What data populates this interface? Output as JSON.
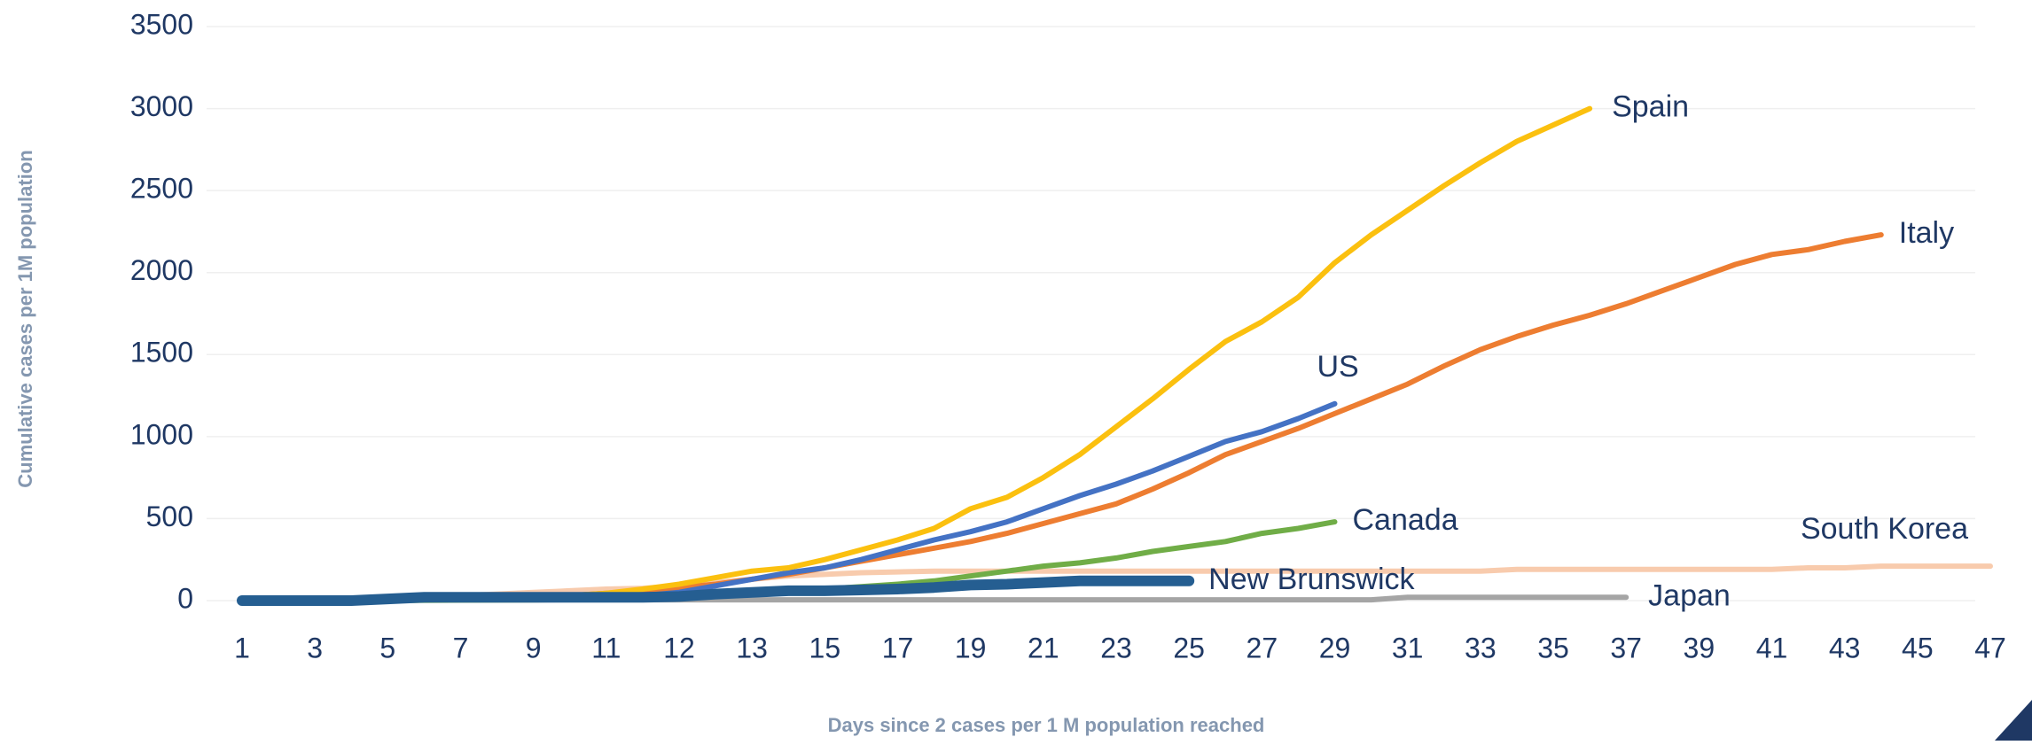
{
  "chart_data": {
    "type": "line",
    "y_label": "Cumulative cases per 1M population",
    "x_label": "Days since 2 cases per 1 M population reached",
    "categories": [
      1,
      null,
      3,
      null,
      5,
      null,
      7,
      null,
      9,
      null,
      11,
      null,
      12,
      null,
      13,
      null,
      15,
      null,
      17,
      null,
      19,
      null,
      21,
      null,
      23,
      null,
      25,
      null,
      27,
      null,
      29,
      null,
      31,
      null,
      33,
      null,
      35,
      null,
      37,
      null,
      39,
      null,
      41,
      null,
      43,
      null,
      45,
      null,
      47
    ],
    "ylim": [
      0,
      3500
    ],
    "yticks": [
      0,
      500,
      1000,
      1500,
      2000,
      2500,
      3000,
      3500
    ],
    "grid": true,
    "series": [
      {
        "name": "South Korea",
        "color": "#f8cbad",
        "values": [
          0,
          0,
          0,
          0,
          10,
          20,
          30,
          40,
          50,
          60,
          70,
          75,
          90,
          110,
          130,
          150,
          160,
          170,
          175,
          180,
          180,
          180,
          180,
          180,
          180,
          180,
          180,
          180,
          180,
          180,
          180,
          180,
          180,
          180,
          180,
          190,
          190,
          190,
          190,
          190,
          190,
          190,
          190,
          200,
          200,
          210,
          210,
          210,
          210
        ]
      },
      {
        "name": "Japan",
        "color": "#a5a5a5",
        "values": [
          0,
          0,
          0,
          0,
          2,
          3,
          3,
          4,
          4,
          5,
          5,
          5,
          5,
          5,
          5,
          5,
          5,
          5,
          5,
          5,
          5,
          5,
          5,
          5,
          5,
          5,
          5,
          5,
          5,
          5,
          5,
          5,
          20,
          20,
          20,
          20,
          20,
          20,
          20,
          null,
          null,
          null,
          null,
          null,
          null,
          null,
          null,
          null,
          null
        ]
      },
      {
        "name": "Canada",
        "color": "#70ad47",
        "values": [
          0,
          0,
          0,
          0,
          0,
          2,
          3,
          4,
          5,
          6,
          8,
          12,
          20,
          30,
          40,
          55,
          70,
          85,
          100,
          120,
          150,
          180,
          210,
          230,
          260,
          300,
          330,
          360,
          410,
          440,
          480,
          null,
          null,
          null,
          null,
          null,
          null,
          null,
          null,
          null,
          null,
          null,
          null,
          null,
          null,
          null,
          null,
          null,
          null
        ]
      },
      {
        "name": "Italy",
        "color": "#ed7d31",
        "values": [
          0,
          0,
          0,
          0,
          5,
          8,
          10,
          15,
          20,
          30,
          45,
          60,
          80,
          100,
          130,
          160,
          200,
          240,
          280,
          320,
          360,
          410,
          470,
          530,
          590,
          680,
          780,
          890,
          970,
          1050,
          1140,
          1230,
          1320,
          1430,
          1530,
          1610,
          1680,
          1740,
          1810,
          1890,
          1970,
          2050,
          2110,
          2140,
          2190,
          2230,
          null,
          null,
          null
        ]
      },
      {
        "name": "US",
        "color": "#4472c4",
        "values": [
          0,
          0,
          0,
          0,
          3,
          5,
          8,
          10,
          12,
          15,
          20,
          30,
          50,
          90,
          130,
          170,
          200,
          250,
          310,
          370,
          420,
          480,
          560,
          640,
          710,
          790,
          880,
          970,
          1030,
          1110,
          1200,
          null,
          null,
          null,
          null,
          null,
          null,
          null,
          null,
          null,
          null,
          null,
          null,
          null,
          null,
          null,
          null,
          null,
          null
        ]
      },
      {
        "name": "Spain",
        "color": "#fbc00f",
        "values": [
          0,
          0,
          0,
          0,
          5,
          8,
          10,
          15,
          20,
          30,
          45,
          70,
          100,
          140,
          180,
          200,
          250,
          310,
          370,
          440,
          560,
          630,
          750,
          890,
          1060,
          1230,
          1410,
          1580,
          1700,
          1850,
          2060,
          2230,
          2380,
          2530,
          2670,
          2800,
          2900,
          3000,
          null,
          null,
          null,
          null,
          null,
          null,
          null,
          null,
          null,
          null,
          null
        ]
      },
      {
        "name": "New Brunswick",
        "color": "#255e91",
        "values": [
          0,
          0,
          0,
          0,
          10,
          20,
          20,
          20,
          20,
          20,
          20,
          20,
          25,
          40,
          50,
          60,
          60,
          65,
          70,
          80,
          95,
          100,
          110,
          120,
          120,
          120,
          120,
          null,
          null,
          null,
          null,
          null,
          null,
          null,
          null,
          null,
          null,
          null,
          null,
          null,
          null,
          null,
          null,
          null,
          null,
          null,
          null,
          null,
          null
        ]
      }
    ]
  }
}
